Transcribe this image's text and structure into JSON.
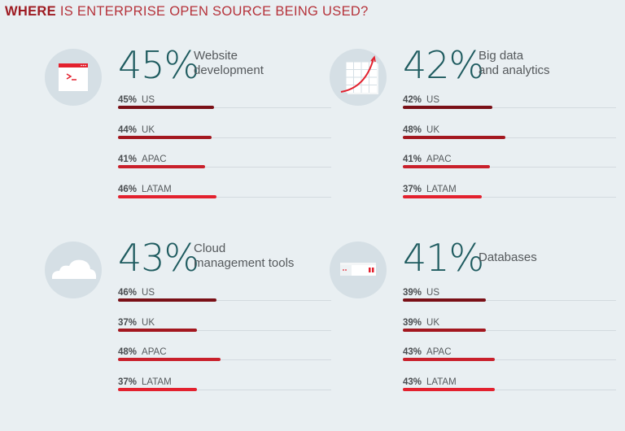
{
  "title": {
    "bold": "WHERE",
    "rest": "IS ENTERPRISE OPEN SOURCE BEING USED?"
  },
  "colors": {
    "US": "#7a1017",
    "UK": "#a3171f",
    "APAC": "#c9202b",
    "LATAM": "#e3212e",
    "headline": "#1e5b5f"
  },
  "chart_data": {
    "type": "bar",
    "xlim": [
      0,
      100
    ],
    "panels": [
      {
        "icon": "terminal-window-icon",
        "headline": "45%",
        "label": [
          "Website",
          "development"
        ],
        "rows": [
          {
            "region": "US",
            "value": 45,
            "label": "45%"
          },
          {
            "region": "UK",
            "value": 44,
            "label": "44%"
          },
          {
            "region": "APAC",
            "value": 41,
            "label": "41%"
          },
          {
            "region": "LATAM",
            "value": 46,
            "label": "46%"
          }
        ]
      },
      {
        "icon": "growth-chart-icon",
        "headline": "42%",
        "label": [
          "Big data",
          "and analytics"
        ],
        "rows": [
          {
            "region": "US",
            "value": 42,
            "label": "42%"
          },
          {
            "region": "UK",
            "value": 48,
            "label": "48%"
          },
          {
            "region": "APAC",
            "value": 41,
            "label": "41%"
          },
          {
            "region": "LATAM",
            "value": 37,
            "label": "37%"
          }
        ]
      },
      {
        "icon": "cloud-icon",
        "headline": "43%",
        "label": [
          "Cloud",
          "management tools"
        ],
        "rows": [
          {
            "region": "US",
            "value": 46,
            "label": "46%"
          },
          {
            "region": "UK",
            "value": 37,
            "label": "37%"
          },
          {
            "region": "APAC",
            "value": 48,
            "label": "48%"
          },
          {
            "region": "LATAM",
            "value": 37,
            "label": "37%"
          }
        ]
      },
      {
        "icon": "database-server-icon",
        "headline": "41%",
        "label": [
          "Databases"
        ],
        "rows": [
          {
            "region": "US",
            "value": 39,
            "label": "39%"
          },
          {
            "region": "UK",
            "value": 39,
            "label": "39%"
          },
          {
            "region": "APAC",
            "value": 43,
            "label": "43%"
          },
          {
            "region": "LATAM",
            "value": 43,
            "label": "43%"
          }
        ]
      }
    ]
  }
}
